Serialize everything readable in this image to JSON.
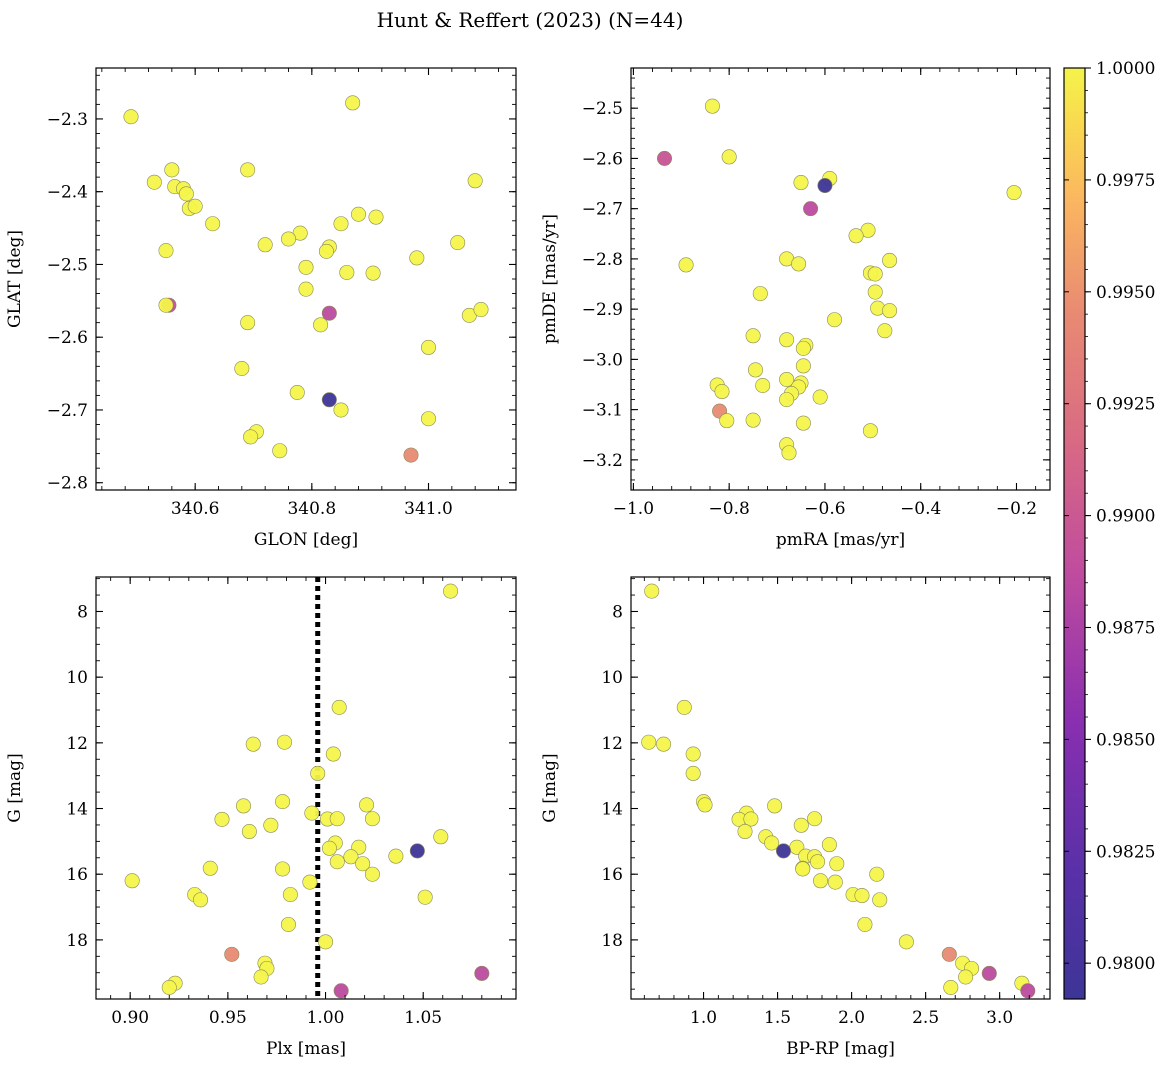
{
  "title": "Hunt & Reffert (2023) (N=44)",
  "colorbar": {
    "min": 0.9792,
    "max": 1.0,
    "ticks": [
      0.98,
      0.9825,
      0.985,
      0.9875,
      0.99,
      0.9925,
      0.995,
      0.9975,
      1.0
    ],
    "tick_labels": [
      "0.9800",
      "0.9825",
      "0.9850",
      "0.9875",
      "0.9900",
      "0.9925",
      "0.9950",
      "0.9975",
      "1.0000"
    ],
    "colormap": "plasma"
  },
  "chart_data": [
    {
      "type": "scatter",
      "id": "sky",
      "xlabel": "GLON [deg]",
      "ylabel": "GLAT [deg]",
      "xlim": [
        340.43,
        341.15
      ],
      "ylim": [
        -2.81,
        -2.23
      ],
      "xticks": [
        340.6,
        340.8,
        341.0
      ],
      "xtick_labels": [
        "340.6",
        "340.8",
        "341.0"
      ],
      "yticks": [
        -2.8,
        -2.7,
        -2.6,
        -2.5,
        -2.4,
        -2.3
      ],
      "ytick_labels": [
        "−2.8",
        "−2.7",
        "−2.6",
        "−2.5",
        "−2.4",
        "−2.3"
      ],
      "points": [
        {
          "x": 340.49,
          "y": -2.297,
          "c": 1.0
        },
        {
          "x": 340.87,
          "y": -2.278,
          "c": 1.0
        },
        {
          "x": 340.53,
          "y": -2.387,
          "c": 1.0
        },
        {
          "x": 340.56,
          "y": -2.37,
          "c": 1.0
        },
        {
          "x": 340.565,
          "y": -2.393,
          "c": 1.0
        },
        {
          "x": 340.58,
          "y": -2.396,
          "c": 1.0
        },
        {
          "x": 340.585,
          "y": -2.403,
          "c": 1.0
        },
        {
          "x": 340.59,
          "y": -2.423,
          "c": 1.0
        },
        {
          "x": 340.6,
          "y": -2.42,
          "c": 1.0
        },
        {
          "x": 340.63,
          "y": -2.444,
          "c": 1.0
        },
        {
          "x": 340.69,
          "y": -2.37,
          "c": 1.0
        },
        {
          "x": 341.08,
          "y": -2.385,
          "c": 1.0
        },
        {
          "x": 340.88,
          "y": -2.431,
          "c": 1.0
        },
        {
          "x": 340.91,
          "y": -2.435,
          "c": 1.0
        },
        {
          "x": 340.85,
          "y": -2.444,
          "c": 1.0
        },
        {
          "x": 340.78,
          "y": -2.457,
          "c": 1.0
        },
        {
          "x": 340.76,
          "y": -2.465,
          "c": 1.0
        },
        {
          "x": 340.72,
          "y": -2.473,
          "c": 1.0
        },
        {
          "x": 340.83,
          "y": -2.476,
          "c": 1.0
        },
        {
          "x": 340.825,
          "y": -2.482,
          "c": 1.0
        },
        {
          "x": 340.55,
          "y": -2.481,
          "c": 1.0
        },
        {
          "x": 341.05,
          "y": -2.47,
          "c": 1.0
        },
        {
          "x": 340.98,
          "y": -2.491,
          "c": 1.0
        },
        {
          "x": 340.79,
          "y": -2.504,
          "c": 1.0
        },
        {
          "x": 340.86,
          "y": -2.511,
          "c": 1.0
        },
        {
          "x": 340.905,
          "y": -2.512,
          "c": 1.0
        },
        {
          "x": 340.79,
          "y": -2.534,
          "c": 1.0
        },
        {
          "x": 340.555,
          "y": -2.556,
          "c": 0.989
        },
        {
          "x": 340.55,
          "y": -2.556,
          "c": 1.0
        },
        {
          "x": 340.83,
          "y": -2.567,
          "c": 0.9885
        },
        {
          "x": 341.07,
          "y": -2.57,
          "c": 1.0
        },
        {
          "x": 341.09,
          "y": -2.562,
          "c": 1.0
        },
        {
          "x": 340.815,
          "y": -2.583,
          "c": 1.0
        },
        {
          "x": 340.69,
          "y": -2.58,
          "c": 1.0
        },
        {
          "x": 341.0,
          "y": -2.614,
          "c": 1.0
        },
        {
          "x": 340.68,
          "y": -2.643,
          "c": 1.0
        },
        {
          "x": 340.775,
          "y": -2.676,
          "c": 1.0
        },
        {
          "x": 340.83,
          "y": -2.686,
          "c": 0.9793
        },
        {
          "x": 340.85,
          "y": -2.7,
          "c": 1.0
        },
        {
          "x": 341.0,
          "y": -2.712,
          "c": 1.0
        },
        {
          "x": 340.705,
          "y": -2.73,
          "c": 1.0
        },
        {
          "x": 340.695,
          "y": -2.737,
          "c": 1.0
        },
        {
          "x": 340.745,
          "y": -2.756,
          "c": 1.0
        },
        {
          "x": 340.97,
          "y": -2.762,
          "c": 0.9945
        }
      ]
    },
    {
      "type": "scatter",
      "id": "pm",
      "xlabel": "pmRA [mas/yr]",
      "ylabel": "pmDE [mas/yr]",
      "xlim": [
        -1.005,
        -0.13
      ],
      "ylim": [
        -3.26,
        -2.42
      ],
      "xticks": [
        -1.0,
        -0.8,
        -0.6,
        -0.4,
        -0.2
      ],
      "xtick_labels": [
        "−1.0",
        "−0.8",
        "−0.6",
        "−0.4",
        "−0.2"
      ],
      "yticks": [
        -3.2,
        -3.1,
        -3.0,
        -2.9,
        -2.8,
        -2.7,
        -2.6,
        -2.5
      ],
      "ytick_labels": [
        "−3.2",
        "−3.1",
        "−3.0",
        "−2.9",
        "−2.8",
        "−2.7",
        "−2.6",
        "−2.5"
      ],
      "points": [
        {
          "x": -0.835,
          "y": -2.496,
          "c": 1.0
        },
        {
          "x": -0.935,
          "y": -2.6,
          "c": 0.9895
        },
        {
          "x": -0.8,
          "y": -2.597,
          "c": 1.0
        },
        {
          "x": -0.59,
          "y": -2.64,
          "c": 1.0
        },
        {
          "x": -0.6,
          "y": -2.654,
          "c": 0.9793
        },
        {
          "x": -0.65,
          "y": -2.648,
          "c": 1.0
        },
        {
          "x": -0.205,
          "y": -2.668,
          "c": 1.0
        },
        {
          "x": -0.63,
          "y": -2.7,
          "c": 0.9885
        },
        {
          "x": -0.51,
          "y": -2.743,
          "c": 1.0
        },
        {
          "x": -0.535,
          "y": -2.754,
          "c": 1.0
        },
        {
          "x": -0.89,
          "y": -2.812,
          "c": 1.0
        },
        {
          "x": -0.68,
          "y": -2.8,
          "c": 1.0
        },
        {
          "x": -0.655,
          "y": -2.81,
          "c": 1.0
        },
        {
          "x": -0.465,
          "y": -2.803,
          "c": 1.0
        },
        {
          "x": -0.505,
          "y": -2.828,
          "c": 1.0
        },
        {
          "x": -0.495,
          "y": -2.83,
          "c": 1.0
        },
        {
          "x": -0.735,
          "y": -2.869,
          "c": 1.0
        },
        {
          "x": -0.495,
          "y": -2.866,
          "c": 1.0
        },
        {
          "x": -0.49,
          "y": -2.898,
          "c": 1.0
        },
        {
          "x": -0.465,
          "y": -2.903,
          "c": 1.0
        },
        {
          "x": -0.58,
          "y": -2.921,
          "c": 1.0
        },
        {
          "x": -0.475,
          "y": -2.943,
          "c": 1.0
        },
        {
          "x": -0.75,
          "y": -2.953,
          "c": 1.0
        },
        {
          "x": -0.68,
          "y": -2.961,
          "c": 1.0
        },
        {
          "x": -0.64,
          "y": -2.972,
          "c": 1.0
        },
        {
          "x": -0.645,
          "y": -2.978,
          "c": 1.0
        },
        {
          "x": -0.645,
          "y": -3.013,
          "c": 1.0
        },
        {
          "x": -0.745,
          "y": -3.021,
          "c": 1.0
        },
        {
          "x": -0.68,
          "y": -3.04,
          "c": 1.0
        },
        {
          "x": -0.65,
          "y": -3.047,
          "c": 1.0
        },
        {
          "x": -0.655,
          "y": -3.055,
          "c": 1.0
        },
        {
          "x": -0.73,
          "y": -3.052,
          "c": 1.0
        },
        {
          "x": -0.825,
          "y": -3.051,
          "c": 1.0
        },
        {
          "x": -0.815,
          "y": -3.064,
          "c": 1.0
        },
        {
          "x": -0.67,
          "y": -3.068,
          "c": 1.0
        },
        {
          "x": -0.61,
          "y": -3.075,
          "c": 1.0
        },
        {
          "x": -0.68,
          "y": -3.08,
          "c": 1.0
        },
        {
          "x": -0.82,
          "y": -3.103,
          "c": 0.9945
        },
        {
          "x": -0.805,
          "y": -3.122,
          "c": 1.0
        },
        {
          "x": -0.75,
          "y": -3.121,
          "c": 1.0
        },
        {
          "x": -0.645,
          "y": -3.127,
          "c": 1.0
        },
        {
          "x": -0.505,
          "y": -3.142,
          "c": 1.0
        },
        {
          "x": -0.68,
          "y": -3.17,
          "c": 1.0
        },
        {
          "x": -0.675,
          "y": -3.186,
          "c": 1.0
        }
      ]
    },
    {
      "type": "scatter",
      "id": "plx",
      "xlabel": "Plx [mas]",
      "ylabel": "G [mag]",
      "xlim": [
        0.8825,
        1.0975
      ],
      "ylim": [
        19.8,
        6.95
      ],
      "y_inverted": true,
      "xticks": [
        0.9,
        0.95,
        1.0,
        1.05
      ],
      "xtick_labels": [
        "0.90",
        "0.95",
        "1.00",
        "1.05"
      ],
      "yticks": [
        8,
        10,
        12,
        14,
        16,
        18
      ],
      "ytick_labels": [
        "8",
        "10",
        "12",
        "14",
        "16",
        "18"
      ],
      "vline": {
        "x": 0.996,
        "style": "dotted"
      },
      "points": [
        {
          "x": 1.064,
          "y": 7.38,
          "c": 1.0
        },
        {
          "x": 1.007,
          "y": 10.92,
          "c": 1.0
        },
        {
          "x": 0.963,
          "y": 12.04,
          "c": 1.0
        },
        {
          "x": 0.979,
          "y": 11.98,
          "c": 1.0
        },
        {
          "x": 1.004,
          "y": 12.34,
          "c": 1.0
        },
        {
          "x": 0.996,
          "y": 12.93,
          "c": 1.0
        },
        {
          "x": 0.978,
          "y": 13.79,
          "c": 1.0
        },
        {
          "x": 0.958,
          "y": 13.92,
          "c": 1.0
        },
        {
          "x": 1.021,
          "y": 13.89,
          "c": 1.0
        },
        {
          "x": 0.993,
          "y": 14.14,
          "c": 1.0
        },
        {
          "x": 0.947,
          "y": 14.33,
          "c": 1.0
        },
        {
          "x": 1.001,
          "y": 14.32,
          "c": 1.0
        },
        {
          "x": 1.006,
          "y": 14.31,
          "c": 1.0
        },
        {
          "x": 1.024,
          "y": 14.31,
          "c": 1.0
        },
        {
          "x": 0.972,
          "y": 14.51,
          "c": 1.0
        },
        {
          "x": 0.961,
          "y": 14.7,
          "c": 1.0
        },
        {
          "x": 1.059,
          "y": 14.86,
          "c": 1.0
        },
        {
          "x": 1.005,
          "y": 15.05,
          "c": 1.0
        },
        {
          "x": 1.017,
          "y": 15.18,
          "c": 1.0
        },
        {
          "x": 1.002,
          "y": 15.21,
          "c": 1.0
        },
        {
          "x": 1.047,
          "y": 15.29,
          "c": 0.9793
        },
        {
          "x": 1.036,
          "y": 15.45,
          "c": 1.0
        },
        {
          "x": 1.013,
          "y": 15.47,
          "c": 1.0
        },
        {
          "x": 1.006,
          "y": 15.62,
          "c": 1.0
        },
        {
          "x": 1.019,
          "y": 15.68,
          "c": 1.0
        },
        {
          "x": 0.941,
          "y": 15.82,
          "c": 1.0
        },
        {
          "x": 0.978,
          "y": 15.84,
          "c": 1.0
        },
        {
          "x": 1.024,
          "y": 16.0,
          "c": 1.0
        },
        {
          "x": 0.901,
          "y": 16.2,
          "c": 1.0
        },
        {
          "x": 0.992,
          "y": 16.24,
          "c": 1.0
        },
        {
          "x": 0.933,
          "y": 16.62,
          "c": 1.0
        },
        {
          "x": 0.982,
          "y": 16.62,
          "c": 1.0
        },
        {
          "x": 1.051,
          "y": 16.7,
          "c": 1.0
        },
        {
          "x": 0.936,
          "y": 16.78,
          "c": 1.0
        },
        {
          "x": 0.981,
          "y": 17.53,
          "c": 1.0
        },
        {
          "x": 1.0,
          "y": 18.06,
          "c": 1.0
        },
        {
          "x": 0.952,
          "y": 18.44,
          "c": 0.9945
        },
        {
          "x": 0.969,
          "y": 18.71,
          "c": 1.0
        },
        {
          "x": 0.97,
          "y": 18.87,
          "c": 1.0
        },
        {
          "x": 0.967,
          "y": 19.13,
          "c": 1.0
        },
        {
          "x": 1.08,
          "y": 19.02,
          "c": 0.9885
        },
        {
          "x": 0.923,
          "y": 19.32,
          "c": 1.0
        },
        {
          "x": 0.92,
          "y": 19.45,
          "c": 1.0
        },
        {
          "x": 1.008,
          "y": 19.55,
          "c": 0.9885
        }
      ]
    },
    {
      "type": "scatter",
      "id": "cmd",
      "xlabel": "BP-RP [mag]",
      "ylabel": "G [mag]",
      "xlim": [
        0.51,
        3.34
      ],
      "ylim": [
        19.8,
        6.95
      ],
      "y_inverted": true,
      "xticks": [
        1.0,
        1.5,
        2.0,
        2.5,
        3.0
      ],
      "xtick_labels": [
        "1.0",
        "1.5",
        "2.0",
        "2.5",
        "3.0"
      ],
      "yticks": [
        8,
        10,
        12,
        14,
        16,
        18
      ],
      "ytick_labels": [
        "8",
        "10",
        "12",
        "14",
        "16",
        "18"
      ],
      "points": [
        {
          "x": 0.65,
          "y": 7.38,
          "c": 1.0
        },
        {
          "x": 0.87,
          "y": 10.92,
          "c": 1.0
        },
        {
          "x": 0.63,
          "y": 11.98,
          "c": 1.0
        },
        {
          "x": 0.73,
          "y": 12.04,
          "c": 1.0
        },
        {
          "x": 0.93,
          "y": 12.34,
          "c": 1.0
        },
        {
          "x": 0.93,
          "y": 12.93,
          "c": 1.0
        },
        {
          "x": 1.0,
          "y": 13.79,
          "c": 1.0
        },
        {
          "x": 1.01,
          "y": 13.89,
          "c": 1.0
        },
        {
          "x": 1.48,
          "y": 13.92,
          "c": 1.0
        },
        {
          "x": 1.29,
          "y": 14.14,
          "c": 1.0
        },
        {
          "x": 1.24,
          "y": 14.33,
          "c": 1.0
        },
        {
          "x": 1.32,
          "y": 14.32,
          "c": 1.0
        },
        {
          "x": 1.75,
          "y": 14.31,
          "c": 1.0
        },
        {
          "x": 1.66,
          "y": 14.51,
          "c": 1.0
        },
        {
          "x": 1.28,
          "y": 14.7,
          "c": 1.0
        },
        {
          "x": 1.42,
          "y": 14.86,
          "c": 1.0
        },
        {
          "x": 1.46,
          "y": 15.05,
          "c": 1.0
        },
        {
          "x": 1.85,
          "y": 15.1,
          "c": 1.0
        },
        {
          "x": 1.63,
          "y": 15.18,
          "c": 1.0
        },
        {
          "x": 1.54,
          "y": 15.29,
          "c": 0.9793
        },
        {
          "x": 1.69,
          "y": 15.45,
          "c": 1.0
        },
        {
          "x": 1.75,
          "y": 15.47,
          "c": 1.0
        },
        {
          "x": 1.77,
          "y": 15.62,
          "c": 1.0
        },
        {
          "x": 1.9,
          "y": 15.68,
          "c": 1.0
        },
        {
          "x": 1.67,
          "y": 15.82,
          "c": 1.0
        },
        {
          "x": 1.67,
          "y": 15.84,
          "c": 1.0
        },
        {
          "x": 2.17,
          "y": 16.0,
          "c": 1.0
        },
        {
          "x": 1.79,
          "y": 16.2,
          "c": 1.0
        },
        {
          "x": 1.89,
          "y": 16.24,
          "c": 1.0
        },
        {
          "x": 2.01,
          "y": 16.62,
          "c": 1.0
        },
        {
          "x": 2.07,
          "y": 16.65,
          "c": 1.0
        },
        {
          "x": 2.19,
          "y": 16.78,
          "c": 1.0
        },
        {
          "x": 2.09,
          "y": 17.53,
          "c": 1.0
        },
        {
          "x": 2.37,
          "y": 18.06,
          "c": 1.0
        },
        {
          "x": 2.66,
          "y": 18.44,
          "c": 0.9945
        },
        {
          "x": 2.75,
          "y": 18.71,
          "c": 1.0
        },
        {
          "x": 2.81,
          "y": 18.87,
          "c": 1.0
        },
        {
          "x": 2.77,
          "y": 19.13,
          "c": 1.0
        },
        {
          "x": 2.93,
          "y": 19.02,
          "c": 0.9885
        },
        {
          "x": 3.15,
          "y": 19.32,
          "c": 1.0
        },
        {
          "x": 2.67,
          "y": 19.45,
          "c": 1.0
        },
        {
          "x": 3.19,
          "y": 19.55,
          "c": 0.9885
        }
      ]
    }
  ]
}
